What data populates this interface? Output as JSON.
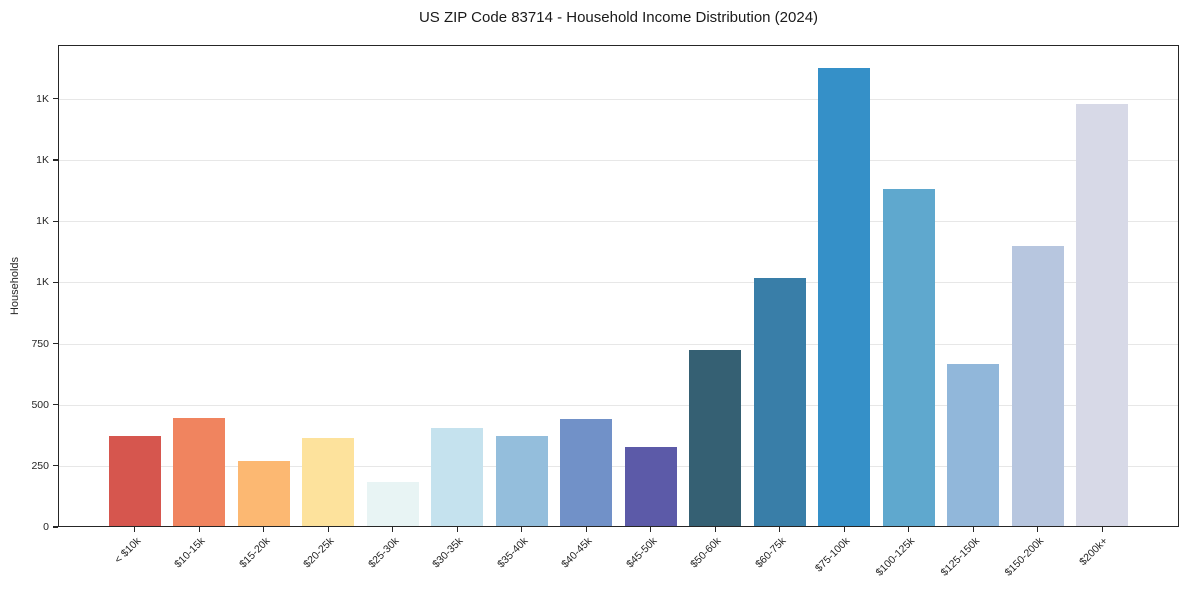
{
  "chart_data": {
    "type": "bar",
    "title": "US ZIP Code 83714 - Household Income Distribution (2024)",
    "xlabel": "",
    "ylabel": "Households",
    "categories": [
      "< $10k",
      "$10-15k",
      "$15-20k",
      "$20-25k",
      "$25-30k",
      "$30-35k",
      "$35-40k",
      "$40-45k",
      "$45-50k",
      "$50-60k",
      "$60-75k",
      "$75-100k",
      "$100-125k",
      "$125-150k",
      "$150-200k",
      "$200k+"
    ],
    "values": [
      372,
      444,
      268,
      362,
      186,
      405,
      370,
      441,
      327,
      725,
      1018,
      1875,
      1380,
      665,
      1150,
      1730
    ],
    "bar_colors": [
      "#d6564e",
      "#f0845f",
      "#fcb872",
      "#fde29c",
      "#e8f4f4",
      "#c5e2ee",
      "#94bedc",
      "#7191c8",
      "#5c5aa8",
      "#356073",
      "#397ea8",
      "#3590c8",
      "#5fa8ce",
      "#91b7da",
      "#b7c6df",
      "#d7d9e7"
    ],
    "ylim": [
      0,
      1970
    ],
    "yticks": [
      {
        "value": 0,
        "label": "0"
      },
      {
        "value": 250,
        "label": "250"
      },
      {
        "value": 500,
        "label": "500"
      },
      {
        "value": 750,
        "label": "750"
      },
      {
        "value": 1000,
        "label": "1K"
      },
      {
        "value": 1250,
        "label": "1K"
      },
      {
        "value": 1500,
        "label": "1K"
      },
      {
        "value": 1750,
        "label": "1K"
      }
    ],
    "grid": "horizontal",
    "legend": "none",
    "bar_width": 0.8,
    "x_margin": 0.05,
    "x_tick_rotation": 45,
    "colors": {
      "axis": "#262626",
      "grid": "#e7e7e7",
      "text": "#262626",
      "background": "#ffffff"
    }
  }
}
